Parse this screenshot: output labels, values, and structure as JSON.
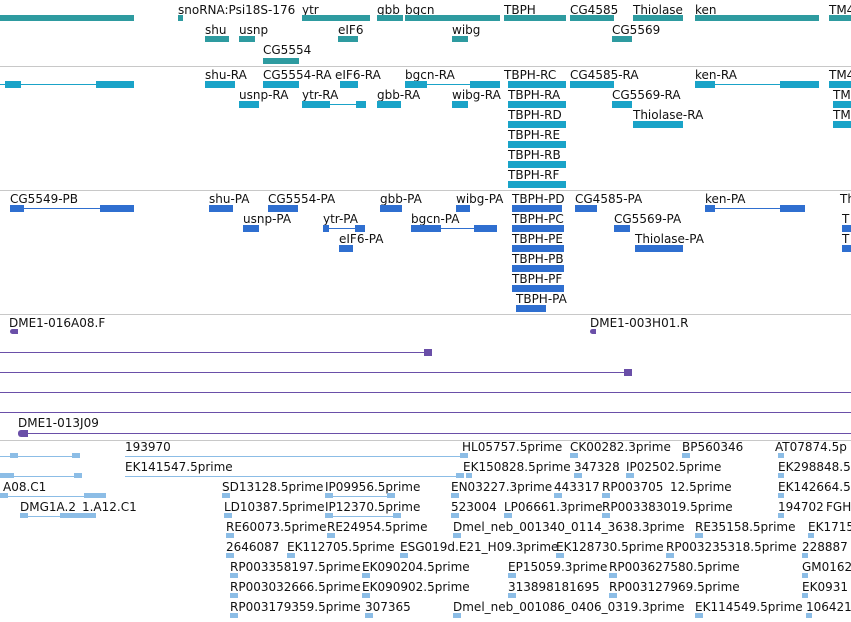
{
  "colors": {
    "gene": "#2e9ba0",
    "mrna": "#1aa3c8",
    "cds": "#2f6fd0",
    "clone": "#6a4fa8",
    "est": "#8cbde6",
    "separator": "#c8c8c8",
    "text": "#111111"
  },
  "gene_track": {
    "labels": [
      "snoRNA:Psi18S-176",
      "ytr",
      "gbb",
      "bgcn",
      "TBPH",
      "CG4585",
      "Thiolase",
      "ken",
      "TM4",
      "shu",
      "usnp",
      "eIF6",
      "wibg",
      "CG5569",
      "CG5554"
    ]
  },
  "transcript_track": {
    "labels": [
      "shu-RA",
      "CG5554-RA",
      "eIF6-RA",
      "bgcn-RA",
      "TBPH-RC",
      "CG4585-RA",
      "ken-RA",
      "TM4",
      "usnp-RA",
      "ytr-RA",
      "gbb-RA",
      "wibg-RA",
      "TBPH-RA",
      "CG5569-RA",
      "TM",
      "TBPH-RD",
      "Thiolase-RA",
      "TM",
      "TBPH-RE",
      "TBPH-RB",
      "TBPH-RF"
    ]
  },
  "protein_track": {
    "labels": [
      "CG5549-PB",
      "shu-PA",
      "CG5554-PA",
      "gbb-PA",
      "wibg-PA",
      "TBPH-PD",
      "CG4585-PA",
      "ken-PA",
      "Th",
      "usnp-PA",
      "ytr-PA",
      "bgcn-PA",
      "TBPH-PC",
      "CG5569-PA",
      "T",
      "eIF6-PA",
      "TBPH-PE",
      "Thiolase-PA",
      "T",
      "TBPH-PB",
      "TBPH-PF",
      "TBPH-PA"
    ]
  },
  "clone_track": {
    "labels": [
      "DME1-016A08.F",
      "DME1-003H01.R",
      "DME1-013J09"
    ]
  },
  "est_track": {
    "labels": [
      "193970",
      "HL05757.5prime",
      "CK00282.3prime",
      "BP560346",
      "AT07874.5p",
      "EK141547.5prime",
      "EK150828.5prime",
      "347328",
      "IP02502.5prime",
      "EK298848.5",
      "A08.C1",
      "SD13128.5prime",
      "IP09956.5prime",
      "EN03227.3prime",
      "443317",
      "RP003705",
      "12.5prime",
      "EK142664.5",
      "DMG1A.2_1.A12.C1",
      "LD10387.5prime",
      "IP12370.5prime",
      "523004",
      "LP06661.3prime",
      "RP003383019.5prime",
      "194702",
      "FGH",
      "RE60073.5prime",
      "RE24954.5prime",
      "Dmel_neb_001340_0114_3638.3prime",
      "RE35158.5prime",
      "EK1715",
      "2646087",
      "EK112705.5prime",
      "ESG019d.E21_H09.3prime",
      "EK128730.5prime",
      "RP003235318.5prime",
      "228887",
      "RP003358197.5prime",
      "EK090204.5prime",
      "EP15059.3prime",
      "RP003627580.5prime",
      "GM0162",
      "RP003032666.5prime",
      "EK090902.5prime",
      "313898181695",
      "RP003127969.5prime",
      "EK0931",
      "RP003179359.5prime",
      "307365",
      "Dmel_neb_001086_0406_0319.3prime",
      "EK114549.5prime",
      "106421"
    ]
  }
}
